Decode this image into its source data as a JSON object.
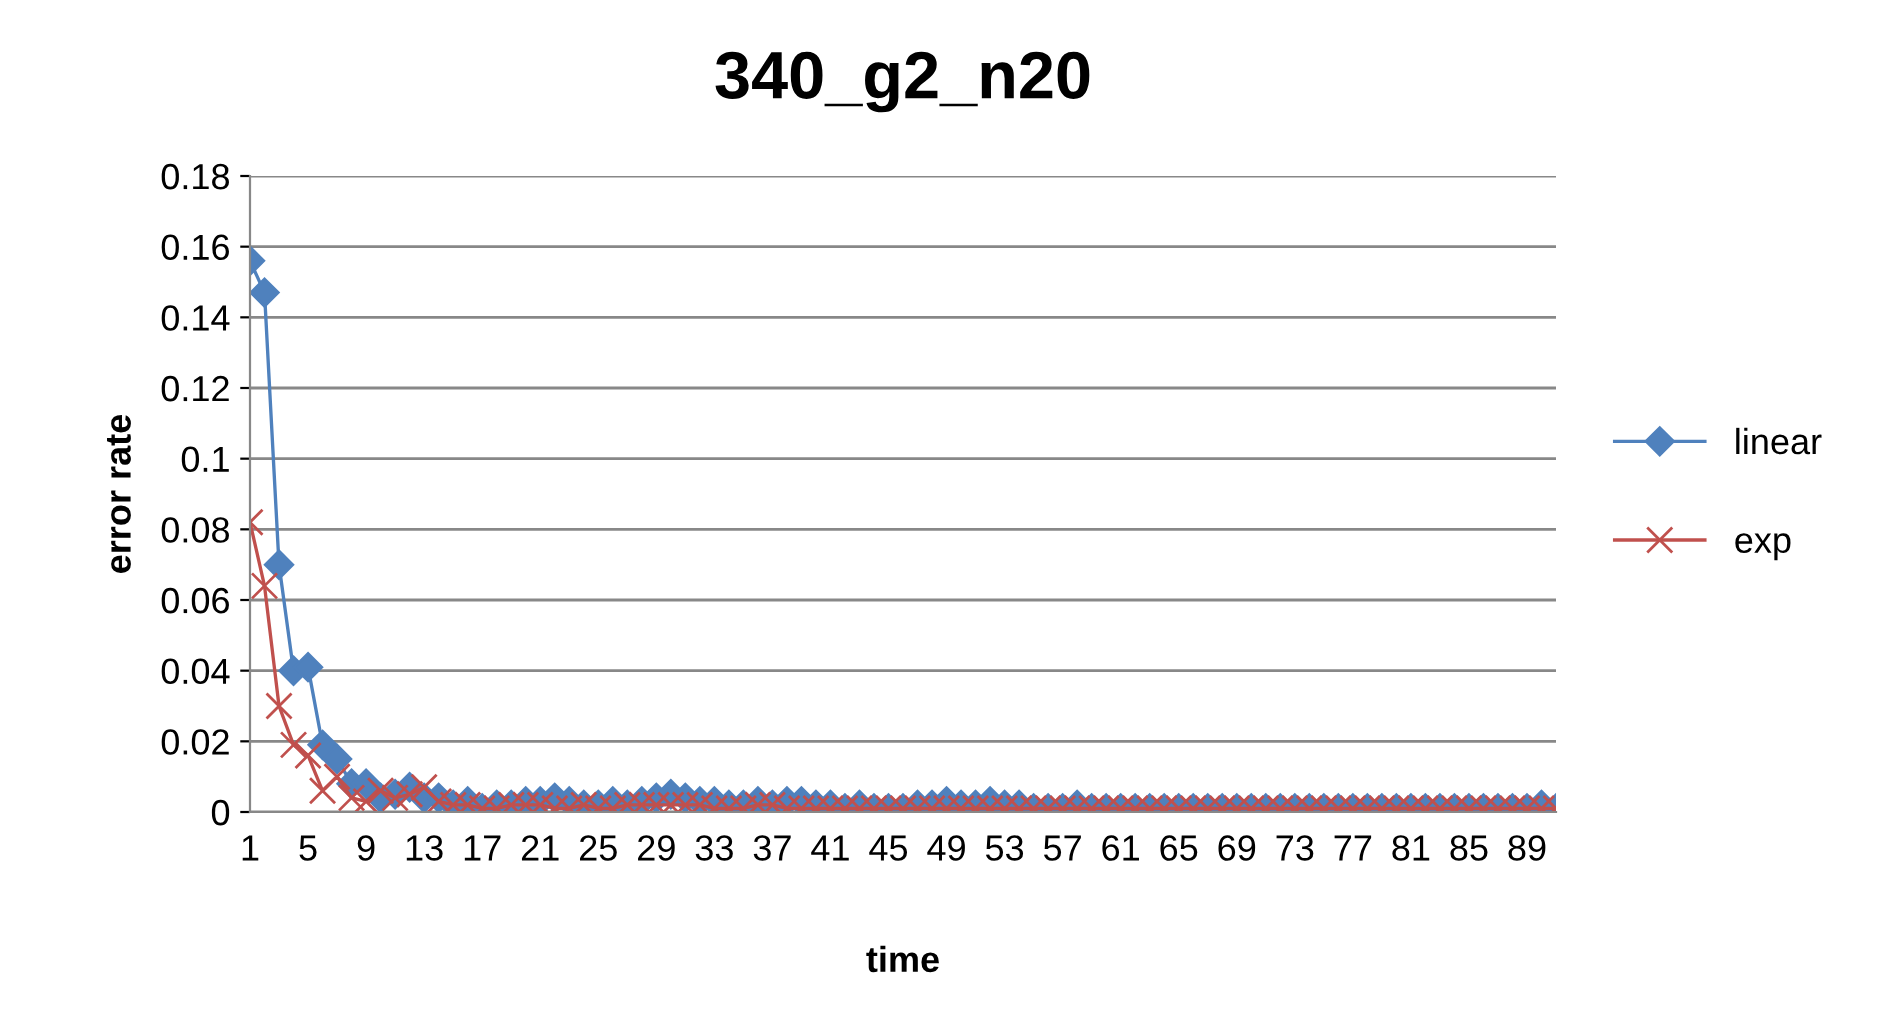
{
  "chart_data": {
    "type": "line",
    "title": "340_g2_n20",
    "xlabel": "time",
    "ylabel": "error rate",
    "categories": [
      "1",
      null,
      null,
      null,
      "5",
      null,
      null,
      null,
      "9",
      null,
      null,
      null,
      "13",
      null,
      null,
      null,
      "17",
      null,
      null,
      null,
      "21",
      null,
      null,
      null,
      "25",
      null,
      null,
      null,
      "29",
      null,
      null,
      null,
      "33",
      null,
      null,
      null,
      "37",
      null,
      null,
      null,
      "41",
      null,
      null,
      null,
      "45",
      null,
      null,
      null,
      "49",
      null,
      null,
      null,
      "53",
      null,
      null,
      null,
      "57",
      null,
      null,
      null,
      "61",
      null,
      null,
      null,
      "65",
      null,
      null,
      null,
      "69",
      null,
      null,
      null,
      "73",
      null,
      null,
      null,
      "77",
      null,
      null,
      null,
      "81",
      null,
      null,
      null,
      "85",
      null,
      null,
      null,
      "89",
      null,
      null
    ],
    "series": [
      {
        "name": "linear",
        "color": "#4f81bd",
        "marker": "diamond",
        "values": [
          0.156,
          0.147,
          0.07,
          0.04,
          0.041,
          0.019,
          0.015,
          0.008,
          0.008,
          0.004,
          0.005,
          0.007,
          0.004,
          0.004,
          0.002,
          0.003,
          0.001,
          0.002,
          0.002,
          0.003,
          0.003,
          0.004,
          0.003,
          0.002,
          0.002,
          0.003,
          0.002,
          0.003,
          0.004,
          0.005,
          0.004,
          0.003,
          0.003,
          0.002,
          0.002,
          0.003,
          0.002,
          0.003,
          0.003,
          0.002,
          0.002,
          0.001,
          0.002,
          0.001,
          0.001,
          0.001,
          0.002,
          0.002,
          0.003,
          0.002,
          0.002,
          0.003,
          0.002,
          0.002,
          0.001,
          0.001,
          0.001,
          0.002,
          0.001,
          0.001,
          0.001,
          0.001,
          0.001,
          0.001,
          0.001,
          0.001,
          0.001,
          0.001,
          0.001,
          0.001,
          0.001,
          0.001,
          0.001,
          0.001,
          0.001,
          0.001,
          0.001,
          0.001,
          0.001,
          0.001,
          0.001,
          0.001,
          0.001,
          0.001,
          0.001,
          0.001,
          0.001,
          0.001,
          0.001,
          0.002,
          0.001
        ]
      },
      {
        "name": "exp",
        "color": "#c0504d",
        "marker": "cross",
        "values": [
          0.082,
          0.064,
          0.03,
          0.019,
          0.016,
          0.006,
          0.01,
          0.004,
          0.003,
          0.006,
          0.004,
          0.005,
          0.007,
          0.003,
          0.002,
          0.002,
          0.001,
          0.001,
          0.002,
          0.002,
          0.002,
          0.001,
          0.001,
          0.002,
          0.001,
          0.001,
          0.002,
          0.002,
          0.002,
          0.002,
          0.002,
          0.002,
          0.001,
          0.001,
          0.001,
          0.002,
          0.002,
          0.001,
          0.001,
          0.001,
          0.001,
          0.001,
          0.001,
          0.001,
          0.001,
          0.001,
          0.001,
          0.001,
          0.001,
          0.001,
          0.001,
          0.001,
          0.001,
          0.001,
          0.001,
          0.001,
          0.001,
          0.001,
          0.001,
          0.001,
          0.001,
          0.001,
          0.001,
          0.001,
          0.001,
          0.001,
          0.001,
          0.001,
          0.001,
          0.001,
          0.001,
          0.001,
          0.001,
          0.001,
          0.001,
          0.001,
          0.001,
          0.001,
          0.001,
          0.001,
          0.001,
          0.001,
          0.001,
          0.001,
          0.001,
          0.001,
          0.001,
          0.001,
          0.001,
          0.001,
          0.001
        ]
      }
    ],
    "ylim": [
      0,
      0.18
    ],
    "yticks": [
      0,
      0.02,
      0.04,
      0.06,
      0.08,
      0.1,
      0.12,
      0.14,
      0.16,
      0.18
    ],
    "grid": "y",
    "legend": "right"
  }
}
